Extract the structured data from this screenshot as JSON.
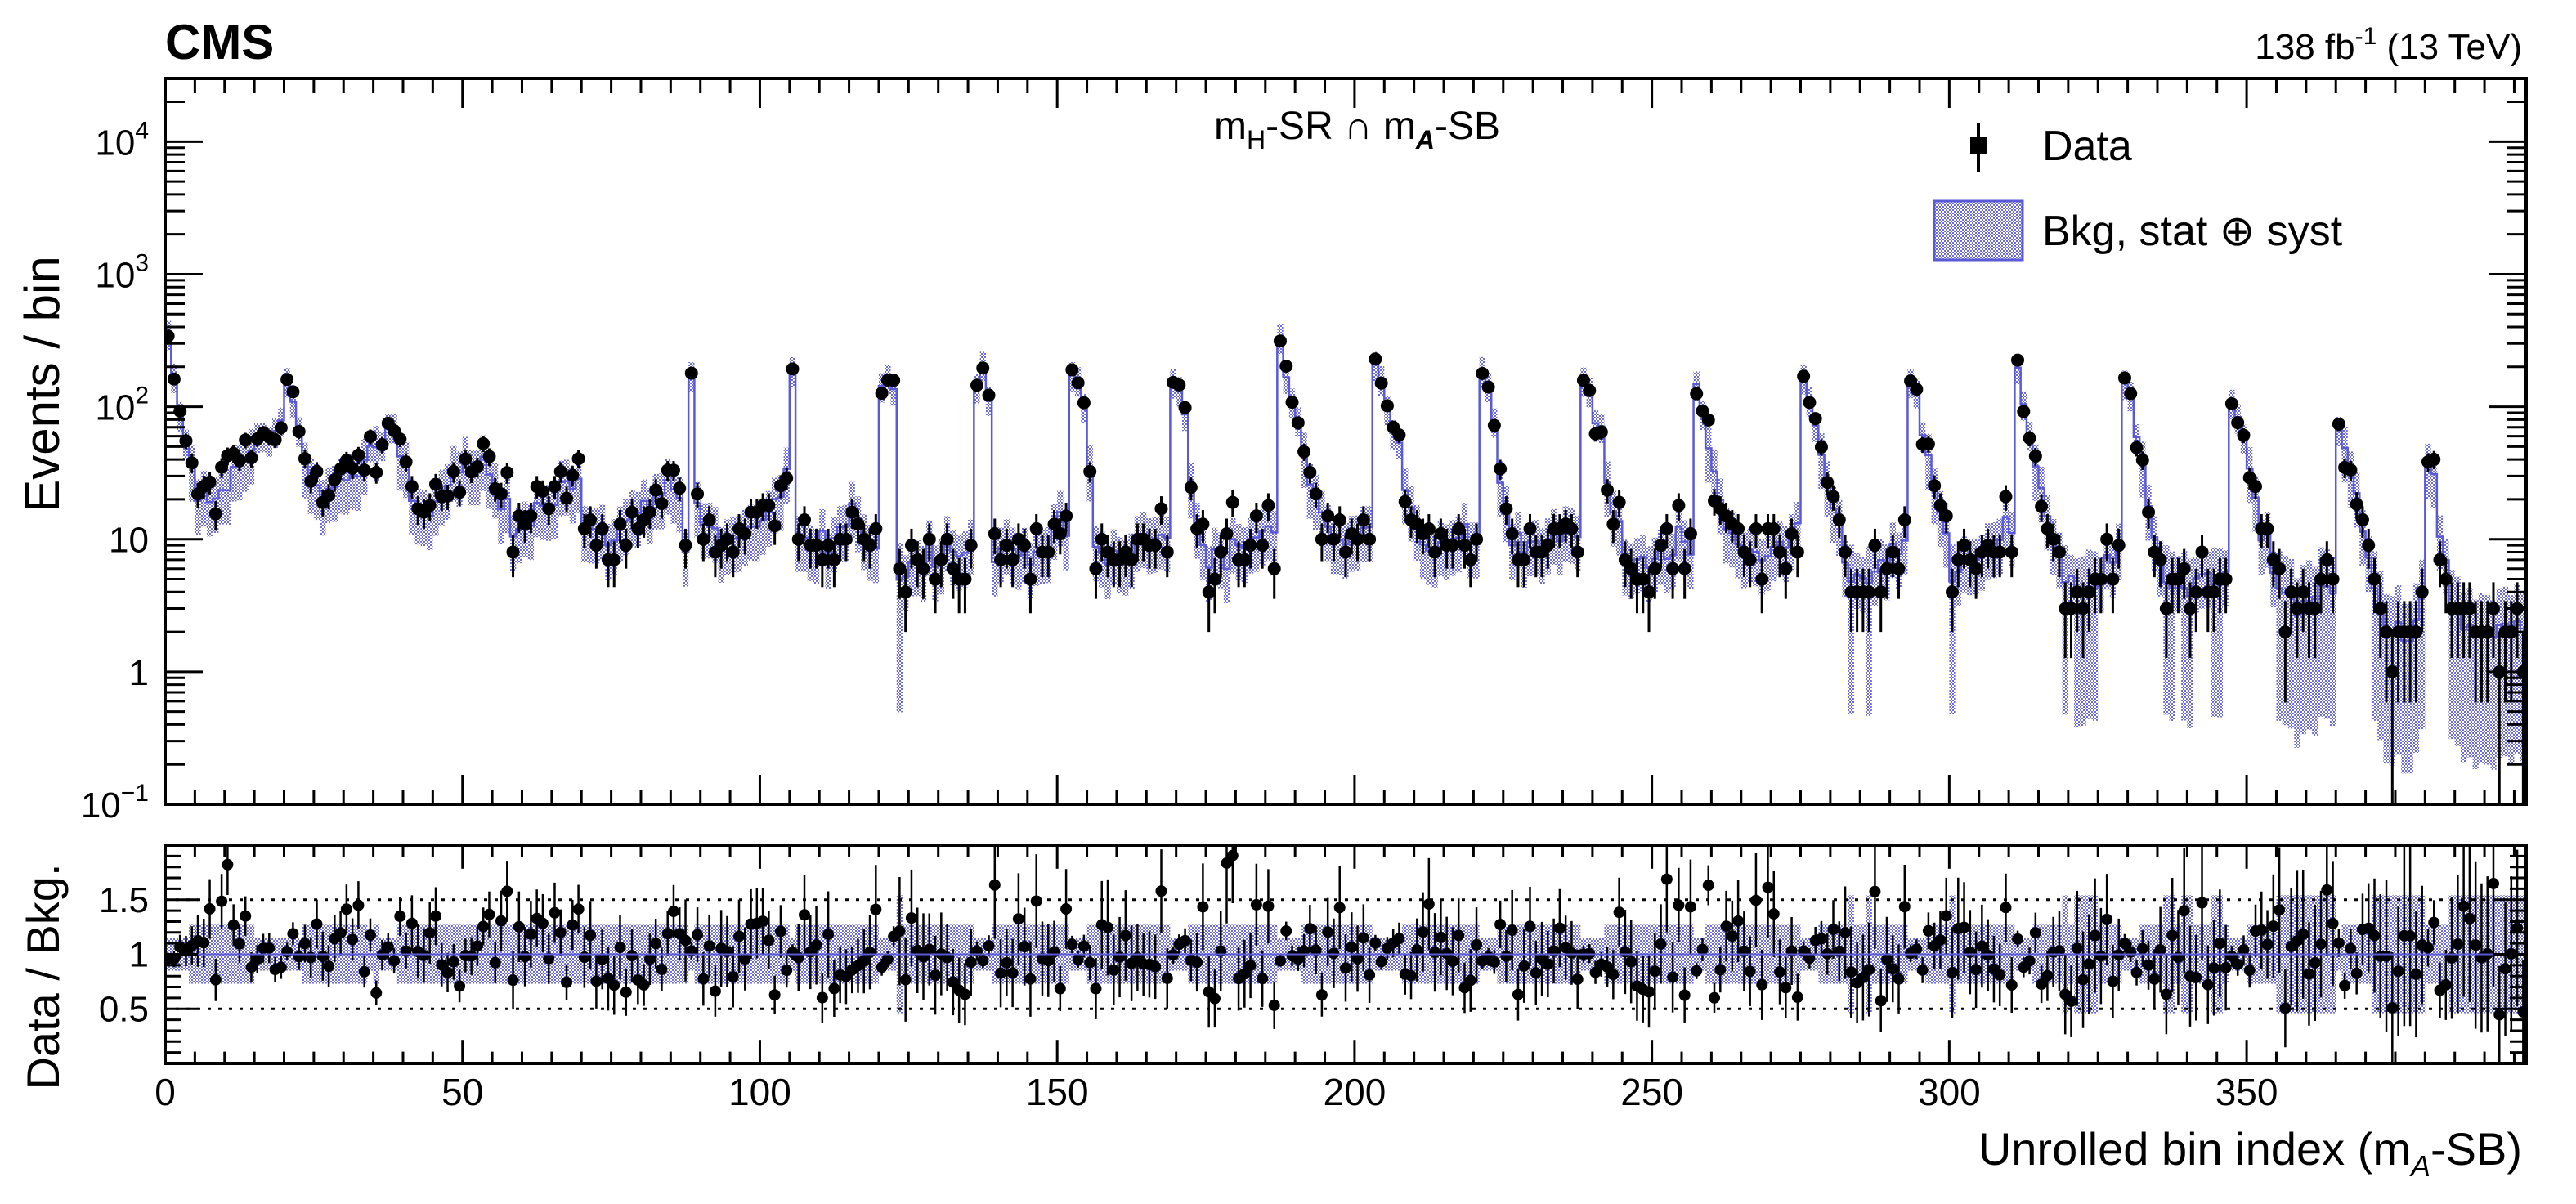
{
  "header": {
    "experiment": "CMS",
    "lumi_prefix": "138 fb",
    "lumi_exp": "-1",
    "lumi_suffix": " (13 TeV)"
  },
  "chart_data": {
    "type": "scatter",
    "region": {
      "m1": "m",
      "m1_sub": "H",
      "mid": "-SR ∩ m",
      "m2_sub": "A",
      "tail": "-SB"
    },
    "legend": {
      "placement": "top-right",
      "data_label": "Data",
      "bkg_label": "Bkg, stat ⊕ syst"
    },
    "colors": {
      "bkg_line": "#5a5ad6",
      "bkg_band": "#6b6bdd",
      "data": "#000000"
    },
    "upper": {
      "ylabel": "Events / bin",
      "yscale": "log",
      "ylim": [
        0.1,
        30000
      ],
      "yticks": [
        {
          "value": 0.1,
          "base": "10",
          "exp": "−1"
        },
        {
          "value": 1,
          "label": "1"
        },
        {
          "value": 10,
          "label": "10"
        },
        {
          "value": 100,
          "base": "10",
          "exp": "2"
        },
        {
          "value": 1000,
          "base": "10",
          "exp": "3"
        },
        {
          "value": 10000,
          "base": "10",
          "exp": "4"
        }
      ],
      "anchors": [
        [
          0,
          300
        ],
        [
          1,
          150
        ],
        [
          2,
          90
        ],
        [
          3,
          50
        ],
        [
          5,
          22
        ],
        [
          7,
          18
        ],
        [
          10,
          30
        ],
        [
          14,
          45
        ],
        [
          17,
          60
        ],
        [
          19,
          70
        ],
        [
          20,
          170
        ],
        [
          21,
          90
        ],
        [
          22,
          70
        ],
        [
          24,
          25
        ],
        [
          28,
          25
        ],
        [
          31,
          30
        ],
        [
          35,
          50
        ],
        [
          38,
          60
        ],
        [
          40,
          30
        ],
        [
          42,
          15
        ],
        [
          45,
          20
        ],
        [
          48,
          30
        ],
        [
          51,
          38
        ],
        [
          55,
          25
        ],
        [
          58,
          12
        ],
        [
          62,
          18
        ],
        [
          66,
          25
        ],
        [
          69,
          28
        ],
        [
          70,
          12
        ],
        [
          73,
          10
        ],
        [
          76,
          12
        ],
        [
          80,
          18
        ],
        [
          84,
          28
        ],
        [
          86,
          20
        ],
        [
          87,
          9
        ],
        [
          88,
          160
        ],
        [
          89,
          18
        ],
        [
          90,
          12
        ],
        [
          93,
          10
        ],
        [
          96,
          10
        ],
        [
          100,
          12
        ],
        [
          103,
          20
        ],
        [
          104,
          30
        ],
        [
          105,
          200
        ],
        [
          106,
          12
        ],
        [
          108,
          8
        ],
        [
          112,
          10
        ],
        [
          116,
          15
        ],
        [
          118,
          10
        ],
        [
          119,
          10
        ],
        [
          120,
          150
        ],
        [
          121,
          180
        ],
        [
          122,
          120
        ],
        [
          123,
          6
        ],
        [
          127,
          7
        ],
        [
          131,
          10
        ],
        [
          134,
          8
        ],
        [
          135,
          9
        ],
        [
          136,
          150
        ],
        [
          137,
          200
        ],
        [
          138,
          120
        ],
        [
          139,
          8
        ],
        [
          144,
          8
        ],
        [
          148,
          10
        ],
        [
          151,
          12
        ],
        [
          152,
          170
        ],
        [
          153,
          140
        ],
        [
          154,
          90
        ],
        [
          155,
          35
        ],
        [
          156,
          8
        ],
        [
          160,
          7
        ],
        [
          164,
          10
        ],
        [
          168,
          10
        ],
        [
          169,
          180
        ],
        [
          170,
          120
        ],
        [
          171,
          80
        ],
        [
          172,
          25
        ],
        [
          174,
          9
        ],
        [
          178,
          7
        ],
        [
          182,
          10
        ],
        [
          186,
          12
        ],
        [
          187,
          260
        ],
        [
          188,
          180
        ],
        [
          190,
          80
        ],
        [
          192,
          30
        ],
        [
          194,
          15
        ],
        [
          197,
          10
        ],
        [
          200,
          10
        ],
        [
          202,
          12
        ],
        [
          203,
          200
        ],
        [
          204,
          150
        ],
        [
          206,
          80
        ],
        [
          208,
          30
        ],
        [
          210,
          12
        ],
        [
          214,
          8
        ],
        [
          218,
          10
        ],
        [
          220,
          10
        ],
        [
          221,
          200
        ],
        [
          222,
          150
        ],
        [
          223,
          80
        ],
        [
          224,
          30
        ],
        [
          226,
          10
        ],
        [
          230,
          8
        ],
        [
          234,
          10
        ],
        [
          237,
          12
        ],
        [
          238,
          170
        ],
        [
          239,
          120
        ],
        [
          241,
          50
        ],
        [
          243,
          15
        ],
        [
          246,
          7
        ],
        [
          250,
          7
        ],
        [
          254,
          10
        ],
        [
          256,
          10
        ],
        [
          257,
          150
        ],
        [
          258,
          100
        ],
        [
          259,
          50
        ],
        [
          261,
          20
        ],
        [
          264,
          8
        ],
        [
          268,
          7
        ],
        [
          272,
          10
        ],
        [
          274,
          12
        ],
        [
          275,
          170
        ],
        [
          276,
          130
        ],
        [
          278,
          50
        ],
        [
          280,
          15
        ],
        [
          283,
          5
        ],
        [
          286,
          5
        ],
        [
          290,
          8
        ],
        [
          292,
          10
        ],
        [
          293,
          170
        ],
        [
          294,
          120
        ],
        [
          296,
          50
        ],
        [
          298,
          15
        ],
        [
          300,
          5
        ],
        [
          304,
          7
        ],
        [
          308,
          10
        ],
        [
          310,
          12
        ],
        [
          311,
          160
        ],
        [
          312,
          120
        ],
        [
          314,
          40
        ],
        [
          316,
          15
        ],
        [
          319,
          5
        ],
        [
          322,
          4
        ],
        [
          326,
          6
        ],
        [
          328,
          8
        ],
        [
          329,
          140
        ],
        [
          330,
          110
        ],
        [
          332,
          40
        ],
        [
          334,
          12
        ],
        [
          336,
          5
        ],
        [
          340,
          4
        ],
        [
          344,
          5
        ],
        [
          346,
          6
        ],
        [
          347,
          120
        ],
        [
          348,
          90
        ],
        [
          350,
          30
        ],
        [
          352,
          10
        ],
        [
          355,
          5
        ],
        [
          358,
          3
        ],
        [
          362,
          4
        ],
        [
          364,
          4
        ],
        [
          365,
          60
        ],
        [
          366,
          50
        ],
        [
          367,
          30
        ],
        [
          369,
          12
        ],
        [
          371,
          4
        ],
        [
          374,
          2
        ],
        [
          377,
          2
        ],
        [
          379,
          3
        ],
        [
          380,
          40
        ],
        [
          381,
          30
        ],
        [
          382,
          10
        ],
        [
          384,
          3
        ],
        [
          387,
          2
        ],
        [
          390,
          2
        ],
        [
          393,
          2
        ],
        [
          395,
          2
        ]
      ]
    },
    "lower": {
      "ylabel": "Data / Bkg.",
      "ylim": [
        0,
        2
      ],
      "yticks": [
        {
          "value": 0.5,
          "label": "0.5"
        },
        {
          "value": 1,
          "label": "1"
        },
        {
          "value": 1.5,
          "label": "1.5"
        }
      ],
      "reference_lines": [
        0.5,
        1.5
      ]
    },
    "xaxis": {
      "label_prefix": "Unrolled bin index (m",
      "label_sub": "A",
      "label_suffix": "-SB)",
      "xlim": [
        0,
        397
      ],
      "ticks": [
        {
          "value": 0,
          "label": "0"
        },
        {
          "value": 50,
          "label": "50"
        },
        {
          "value": 100,
          "label": "100"
        },
        {
          "value": 150,
          "label": "150"
        },
        {
          "value": 200,
          "label": "200"
        },
        {
          "value": 250,
          "label": "250"
        },
        {
          "value": 300,
          "label": "300"
        },
        {
          "value": 350,
          "label": "350"
        }
      ]
    }
  }
}
